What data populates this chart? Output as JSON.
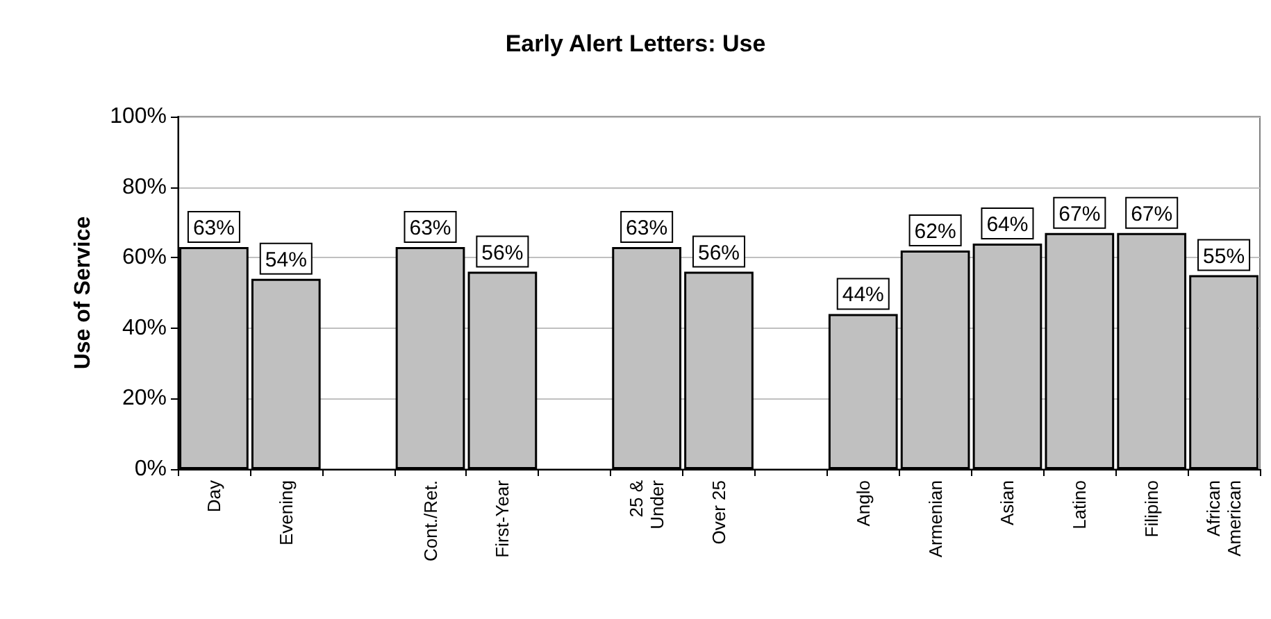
{
  "chart_data": {
    "type": "bar",
    "title": "Early Alert Letters: Use",
    "ylabel": "Use of Service",
    "categories": [
      "Day",
      "Evening",
      null,
      "Cont./Ret.",
      "First-Year",
      null,
      "25 &\nUnder",
      "Over 25",
      null,
      "Anglo",
      "Armenian",
      "Asian",
      "Latino",
      "Filipino",
      "African\nAmerican"
    ],
    "values": [
      63,
      54,
      null,
      63,
      56,
      null,
      63,
      56,
      null,
      44,
      62,
      64,
      67,
      67,
      55
    ],
    "value_labels": [
      "63%",
      "54%",
      null,
      "63%",
      "56%",
      null,
      "63%",
      "56%",
      null,
      "44%",
      "62%",
      "64%",
      "67%",
      "67%",
      "55%"
    ],
    "color": "#c0c0c0",
    "ylim": [
      0,
      100
    ],
    "yticks": [
      {
        "value": 0,
        "label": "0%"
      },
      {
        "value": 20,
        "label": "20%"
      },
      {
        "value": 40,
        "label": "40%"
      },
      {
        "value": 60,
        "label": "60%"
      },
      {
        "value": 80,
        "label": "80%"
      },
      {
        "value": 100,
        "label": "100%"
      }
    ],
    "grid": "y"
  }
}
